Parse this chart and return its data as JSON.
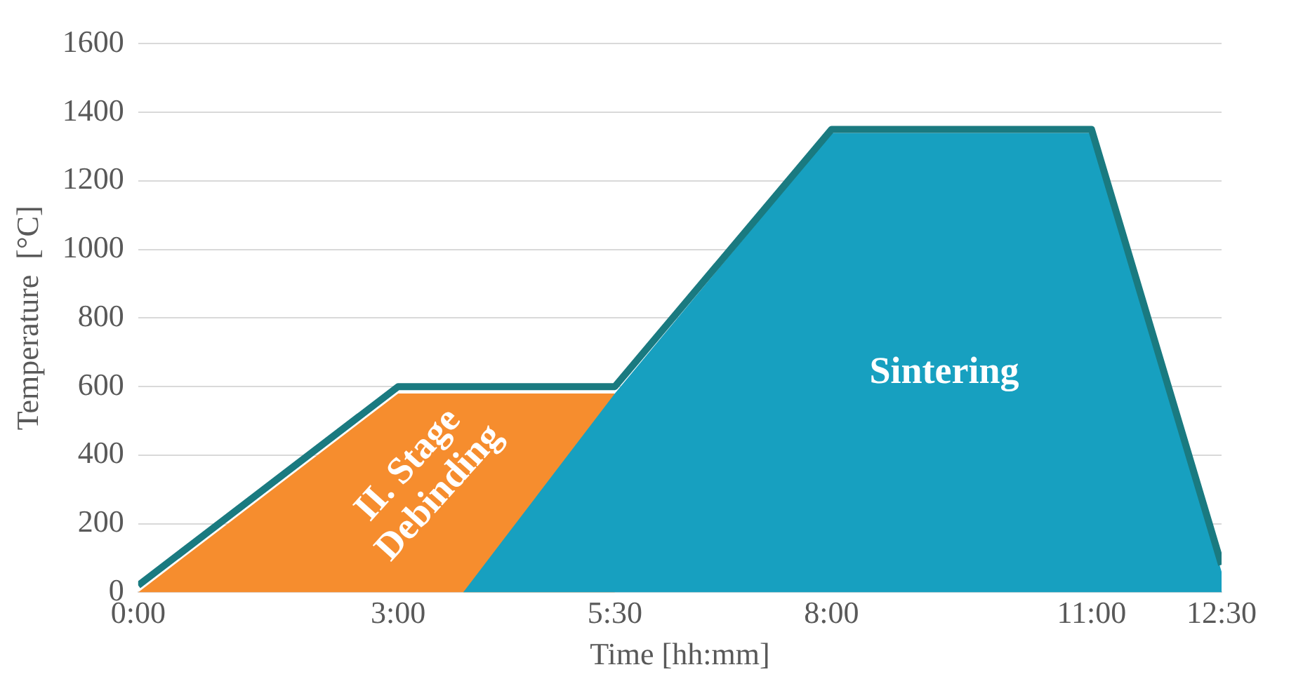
{
  "chart_data": {
    "type": "area",
    "xlabel": "Time [hh:mm]",
    "ylabel": "Temperature  [°C]",
    "annotations": [
      "II. Stage\nDebinding",
      "Sintering"
    ],
    "series": [
      {
        "color": "#f68d2e",
        "x": [
          0,
          3,
          5.5
        ],
        "values": [
          0,
          580,
          580
        ]
      },
      {
        "color": "#17a0c0",
        "x": [
          3.75,
          5.5,
          8,
          11,
          12.5
        ],
        "values": [
          0,
          580,
          1340,
          1340,
          60
        ]
      },
      {
        "type": "line",
        "color": "#1a7a80",
        "x": [
          0,
          3,
          5.5,
          8,
          11,
          12.5
        ],
        "values": [
          20,
          600,
          600,
          1350,
          1350,
          80
        ]
      }
    ],
    "xlim": [
      0,
      12.5
    ],
    "xticks": [
      {
        "value": 0,
        "label": "0:00"
      },
      {
        "value": 3,
        "label": "3:00"
      },
      {
        "value": 5.5,
        "label": "5:30"
      },
      {
        "value": 8,
        "label": "8:00"
      },
      {
        "value": 11,
        "label": "11:00"
      },
      {
        "value": 12.5,
        "label": "12:30"
      }
    ],
    "ylim": [
      0,
      1600
    ],
    "yticks": [
      0,
      200,
      400,
      600,
      800,
      1000,
      1200,
      1400,
      1600
    ],
    "grid": "y",
    "legend": false
  }
}
